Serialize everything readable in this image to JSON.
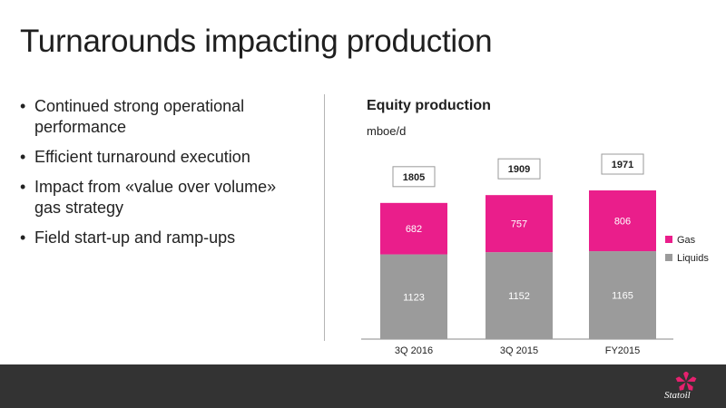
{
  "slide": {
    "title": "Turnarounds impacting production",
    "bullets": [
      "Continued strong operational performance",
      "Efficient turnaround execution",
      "Impact from «value over volume» gas strategy",
      "Field start-up and ramp-ups"
    ],
    "bullet_glyph": "•"
  },
  "chart_data": {
    "type": "bar",
    "stacked": true,
    "title": "Equity production",
    "unit": "mboe/d",
    "categories": [
      "3Q 2016",
      "3Q 2015",
      "FY2015"
    ],
    "totals": [
      1805,
      1909,
      1971
    ],
    "series": [
      {
        "name": "Liquids",
        "values": [
          1123,
          1152,
          1165
        ],
        "color": "#9b9b9b"
      },
      {
        "name": "Gas",
        "values": [
          682,
          757,
          806
        ],
        "color": "#ea1e8b"
      }
    ],
    "ylim": [
      0,
      2200
    ],
    "grid": false,
    "legend": "right"
  },
  "footer": {
    "brand": "Statoil",
    "background": "#333333",
    "logo_color": "#e5216e"
  }
}
